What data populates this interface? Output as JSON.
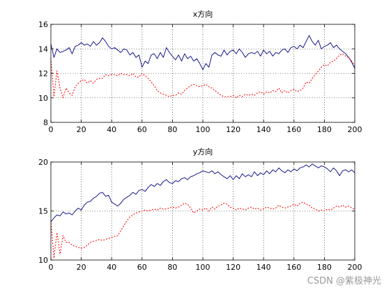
{
  "watermark": "CSDN @紫极神光",
  "chart_data": [
    {
      "type": "line",
      "title": "x方向",
      "xlim": [
        0,
        200
      ],
      "ylim": [
        8,
        16
      ],
      "xticks": [
        0,
        20,
        40,
        60,
        80,
        100,
        120,
        140,
        160,
        180,
        200
      ],
      "yticks": [
        8,
        10,
        12,
        14,
        16
      ],
      "grid": true,
      "series": [
        {
          "color": "#00007f",
          "style": "solid",
          "x": [
            0,
            2,
            4,
            6,
            8,
            10,
            12,
            14,
            16,
            18,
            20,
            22,
            24,
            26,
            28,
            30,
            32,
            34,
            36,
            38,
            40,
            42,
            44,
            46,
            48,
            50,
            52,
            54,
            56,
            58,
            60,
            62,
            64,
            66,
            68,
            70,
            72,
            74,
            76,
            78,
            80,
            82,
            84,
            86,
            88,
            90,
            92,
            94,
            96,
            98,
            100,
            102,
            104,
            106,
            108,
            110,
            112,
            114,
            116,
            118,
            120,
            122,
            124,
            126,
            128,
            130,
            132,
            134,
            136,
            138,
            140,
            142,
            144,
            146,
            148,
            150,
            152,
            154,
            156,
            158,
            160,
            162,
            164,
            166,
            168,
            170,
            172,
            174,
            176,
            178,
            180,
            182,
            184,
            186,
            188,
            190,
            192,
            194,
            196,
            198,
            200
          ],
          "y": [
            14.4,
            13.3,
            14.0,
            13.7,
            13.8,
            13.9,
            14.1,
            13.6,
            14.2,
            14.3,
            14.5,
            14.3,
            14.4,
            14.2,
            14.6,
            14.3,
            14.5,
            14.9,
            14.6,
            14.2,
            14.0,
            14.1,
            13.9,
            13.7,
            14.0,
            13.9,
            13.5,
            13.7,
            13.3,
            13.5,
            12.5,
            13.0,
            12.8,
            13.5,
            13.6,
            13.2,
            13.7,
            13.3,
            14.1,
            13.7,
            13.4,
            13.1,
            13.5,
            13.0,
            13.6,
            13.2,
            13.4,
            13.0,
            13.2,
            12.8,
            12.3,
            12.8,
            12.5,
            13.5,
            13.7,
            13.5,
            13.4,
            13.9,
            13.5,
            13.8,
            13.9,
            13.6,
            14.0,
            13.7,
            13.3,
            13.6,
            13.7,
            13.6,
            13.8,
            13.4,
            13.9,
            13.6,
            13.8,
            13.4,
            13.7,
            13.6,
            13.9,
            14.0,
            13.7,
            14.1,
            14.2,
            14.0,
            14.3,
            14.1,
            14.6,
            15.1,
            14.6,
            14.3,
            14.7,
            14.0,
            14.2,
            14.3,
            14.5,
            14.1,
            14.3,
            14.0,
            13.8,
            13.6,
            13.3,
            12.9,
            12.4
          ]
        },
        {
          "color": "#ff0000",
          "style": "dotted",
          "x": [
            0,
            2,
            4,
            6,
            8,
            10,
            12,
            14,
            16,
            18,
            20,
            22,
            24,
            26,
            28,
            30,
            32,
            34,
            36,
            38,
            40,
            42,
            44,
            46,
            48,
            50,
            52,
            54,
            56,
            58,
            60,
            62,
            64,
            66,
            68,
            70,
            72,
            74,
            76,
            78,
            80,
            82,
            84,
            86,
            88,
            90,
            92,
            94,
            96,
            98,
            100,
            102,
            104,
            106,
            108,
            110,
            112,
            114,
            116,
            118,
            120,
            122,
            124,
            126,
            128,
            130,
            132,
            134,
            136,
            138,
            140,
            142,
            144,
            146,
            148,
            150,
            152,
            154,
            156,
            158,
            160,
            162,
            164,
            166,
            168,
            170,
            172,
            174,
            176,
            178,
            180,
            182,
            184,
            186,
            188,
            190,
            192,
            194,
            196,
            198,
            200
          ],
          "y": [
            13.2,
            10.1,
            12.2,
            10.8,
            10.0,
            10.8,
            10.4,
            10.2,
            10.9,
            11.2,
            11.4,
            11.5,
            11.2,
            11.4,
            11.2,
            11.5,
            11.6,
            11.6,
            11.9,
            11.8,
            11.9,
            11.9,
            11.8,
            12.0,
            11.9,
            11.9,
            11.8,
            12.0,
            11.7,
            11.7,
            12.0,
            11.8,
            11.6,
            11.3,
            11.0,
            10.6,
            10.4,
            10.3,
            10.2,
            10.1,
            10.2,
            10.2,
            10.4,
            10.3,
            10.6,
            10.8,
            11.0,
            11.1,
            11.0,
            10.9,
            11.0,
            11.1,
            10.9,
            10.8,
            10.6,
            10.4,
            10.2,
            10.1,
            10.1,
            10.1,
            10.2,
            10.0,
            10.2,
            10.1,
            10.3,
            10.2,
            10.3,
            10.2,
            10.4,
            10.5,
            10.3,
            10.5,
            10.4,
            10.6,
            10.5,
            10.8,
            10.4,
            10.6,
            10.4,
            10.6,
            10.7,
            10.5,
            10.6,
            10.8,
            11.3,
            11.2,
            11.6,
            11.9,
            12.2,
            12.5,
            12.7,
            12.6,
            12.9,
            13.0,
            13.2,
            13.5,
            13.6,
            13.4,
            13.3,
            13.0,
            12.6
          ]
        }
      ]
    },
    {
      "type": "line",
      "title": "y方向",
      "xlim": [
        0,
        200
      ],
      "ylim": [
        10,
        20
      ],
      "xticks": [
        0,
        20,
        40,
        60,
        80,
        100,
        120,
        140,
        160,
        180,
        200
      ],
      "yticks": [
        10,
        15,
        20
      ],
      "grid": true,
      "series": [
        {
          "color": "#00007f",
          "style": "solid",
          "x": [
            0,
            2,
            4,
            6,
            8,
            10,
            12,
            14,
            16,
            18,
            20,
            22,
            24,
            26,
            28,
            30,
            32,
            34,
            36,
            38,
            40,
            42,
            44,
            46,
            48,
            50,
            52,
            54,
            56,
            58,
            60,
            62,
            64,
            66,
            68,
            70,
            72,
            74,
            76,
            78,
            80,
            82,
            84,
            86,
            88,
            90,
            92,
            94,
            96,
            98,
            100,
            102,
            104,
            106,
            108,
            110,
            112,
            114,
            116,
            118,
            120,
            122,
            124,
            126,
            128,
            130,
            132,
            134,
            136,
            138,
            140,
            142,
            144,
            146,
            148,
            150,
            152,
            154,
            156,
            158,
            160,
            162,
            164,
            166,
            168,
            170,
            172,
            174,
            176,
            178,
            180,
            182,
            184,
            186,
            188,
            190,
            192,
            194,
            196,
            198,
            200
          ],
          "y": [
            13.9,
            14.3,
            14.6,
            14.5,
            14.9,
            14.7,
            14.8,
            14.6,
            15.0,
            15.3,
            15.1,
            15.6,
            15.9,
            16.0,
            16.3,
            16.5,
            16.8,
            16.9,
            16.5,
            16.6,
            15.9,
            15.7,
            15.5,
            15.8,
            16.2,
            16.4,
            16.6,
            16.9,
            16.7,
            17.1,
            17.2,
            17.0,
            17.4,
            17.7,
            17.5,
            17.8,
            17.6,
            18.0,
            18.2,
            17.9,
            17.8,
            18.1,
            18.0,
            18.3,
            18.4,
            18.2,
            18.5,
            18.6,
            18.8,
            18.9,
            19.1,
            19.0,
            18.9,
            19.1,
            18.8,
            19.0,
            18.7,
            18.5,
            18.3,
            18.6,
            18.2,
            18.6,
            18.3,
            18.8,
            18.5,
            18.7,
            18.5,
            19.0,
            18.6,
            18.9,
            18.7,
            19.1,
            18.8,
            19.2,
            19.0,
            19.4,
            19.1,
            18.9,
            19.2,
            19.0,
            19.3,
            19.1,
            19.4,
            19.5,
            19.7,
            19.5,
            19.8,
            19.6,
            19.4,
            19.6,
            19.5,
            19.3,
            19.0,
            19.4,
            19.1,
            18.6,
            19.1,
            19.2,
            19.0,
            19.2,
            18.9
          ]
        },
        {
          "color": "#ff0000",
          "style": "dotted",
          "x": [
            0,
            2,
            4,
            6,
            8,
            10,
            12,
            14,
            16,
            18,
            20,
            22,
            24,
            26,
            28,
            30,
            32,
            34,
            36,
            38,
            40,
            42,
            44,
            46,
            48,
            50,
            52,
            54,
            56,
            58,
            60,
            62,
            64,
            66,
            68,
            70,
            72,
            74,
            76,
            78,
            80,
            82,
            84,
            86,
            88,
            90,
            92,
            94,
            96,
            98,
            100,
            102,
            104,
            106,
            108,
            110,
            112,
            114,
            116,
            118,
            120,
            122,
            124,
            126,
            128,
            130,
            132,
            134,
            136,
            138,
            140,
            142,
            144,
            146,
            148,
            150,
            152,
            154,
            156,
            158,
            160,
            162,
            164,
            166,
            168,
            170,
            172,
            174,
            176,
            178,
            180,
            182,
            184,
            186,
            188,
            190,
            192,
            194,
            196,
            198,
            200
          ],
          "y": [
            14.0,
            10.2,
            12.8,
            10.6,
            12.5,
            11.8,
            11.8,
            11.5,
            11.4,
            11.3,
            11.2,
            11.3,
            11.5,
            11.8,
            11.9,
            12.0,
            12.1,
            12.0,
            12.1,
            12.2,
            12.3,
            12.4,
            12.5,
            13.0,
            13.5,
            14.0,
            14.4,
            14.6,
            14.8,
            14.9,
            15.0,
            15.1,
            15.0,
            15.1,
            15.2,
            15.1,
            15.3,
            15.2,
            15.2,
            15.3,
            15.4,
            15.3,
            15.4,
            15.6,
            15.8,
            15.7,
            15.3,
            14.8,
            15.0,
            15.2,
            15.1,
            15.3,
            15.0,
            15.4,
            15.2,
            15.5,
            15.6,
            15.8,
            15.7,
            15.4,
            15.3,
            15.1,
            15.3,
            15.2,
            15.1,
            15.3,
            15.4,
            15.2,
            15.3,
            15.1,
            15.2,
            15.4,
            15.3,
            15.2,
            15.3,
            15.6,
            15.4,
            15.3,
            15.4,
            15.5,
            15.7,
            15.5,
            15.8,
            15.9,
            15.7,
            15.6,
            15.3,
            15.2,
            15.0,
            15.1,
            15.0,
            15.2,
            15.1,
            15.3,
            15.5,
            15.4,
            15.6,
            15.4,
            15.5,
            15.3,
            15.2
          ]
        }
      ]
    }
  ]
}
